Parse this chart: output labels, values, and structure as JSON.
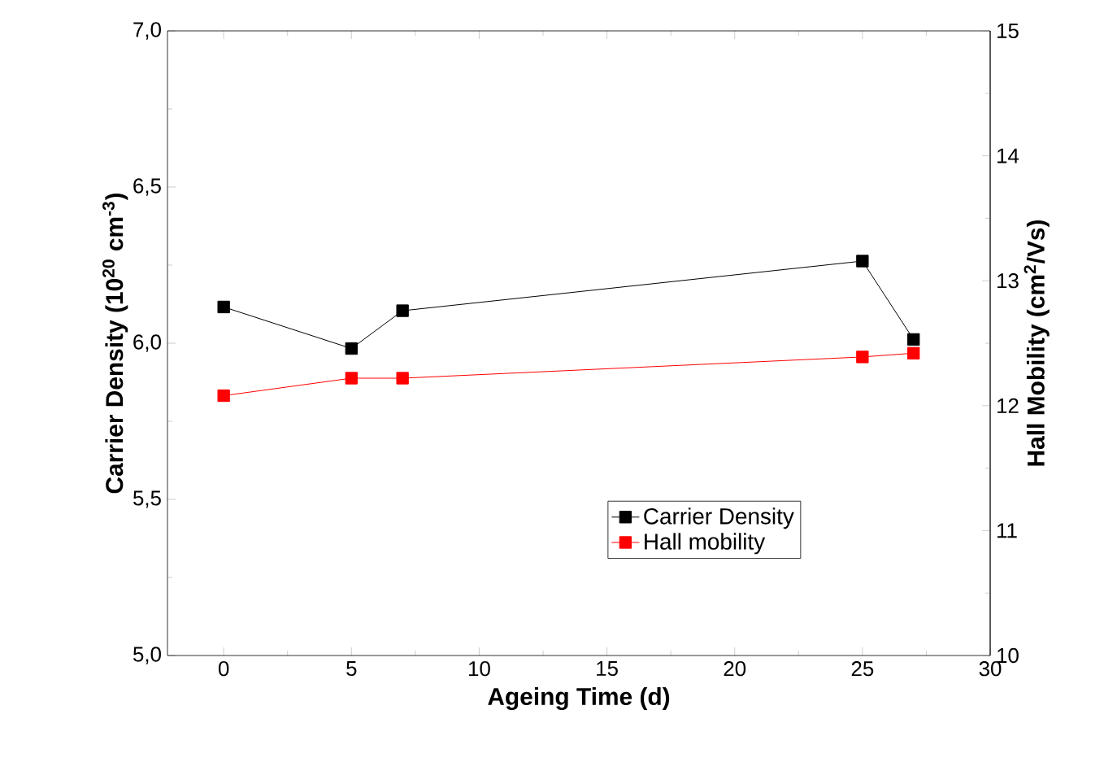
{
  "chart_data": {
    "type": "line",
    "xlabel": "Ageing Time (d)",
    "ylabel": "Carrier Density (10$^{20}$ cm$^{-3}$)",
    "y2label": "Hall Mobility (cm$^{2}$/Vs)",
    "x": [
      0,
      5,
      7,
      25,
      27
    ],
    "series": [
      {
        "name": "Carrier Density",
        "color": "#000000",
        "values": [
          6.116,
          5.983,
          6.104,
          6.263,
          6.012
        ]
      },
      {
        "name": "Hall mobility",
        "color": "#ff0000",
        "axis": "y2",
        "values": [
          12.08,
          12.22,
          12.22,
          12.39,
          12.42
        ]
      }
    ],
    "xlim": [
      -2.2,
      30
    ],
    "xticks": [
      0,
      5,
      10,
      15,
      20,
      25,
      30
    ],
    "ylim": [
      5,
      7
    ],
    "yticks": [
      {
        "value": 5,
        "label": "5,0"
      },
      {
        "value": 5.5,
        "label": "5,5"
      },
      {
        "value": 6,
        "label": "6,0"
      },
      {
        "value": 6.5,
        "label": "6,5"
      },
      {
        "value": 7,
        "label": "7,0"
      }
    ],
    "y2lim": [
      10,
      15
    ],
    "y2ticks": [
      10,
      11,
      12,
      13,
      14,
      15
    ],
    "legend": "bottom right",
    "marker": "square",
    "line_style": "solid",
    "grid": false
  }
}
